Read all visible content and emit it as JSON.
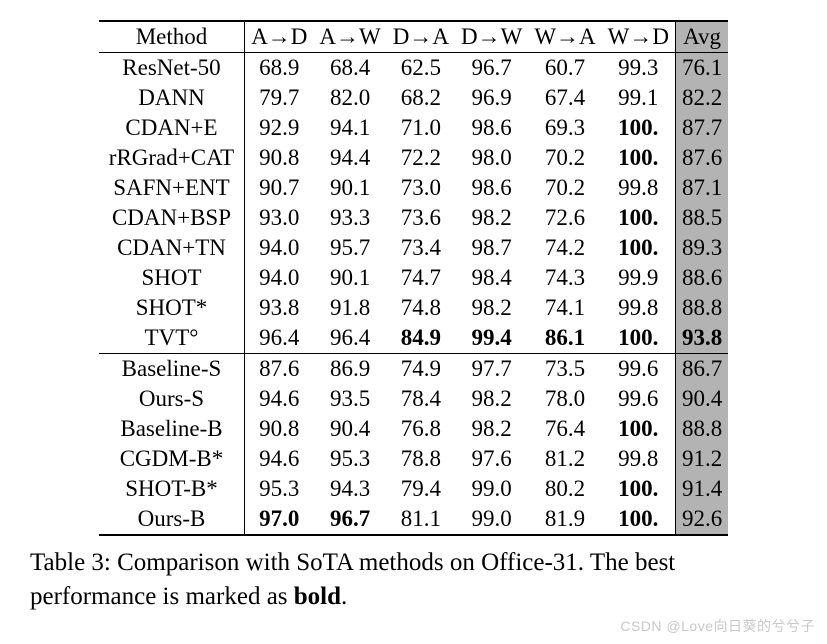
{
  "header": {
    "method": "Method",
    "cols": [
      "A→D",
      "A→W",
      "D→A",
      "D→W",
      "W→A",
      "W→D"
    ],
    "avg": "Avg"
  },
  "groups": [
    {
      "rows": [
        {
          "method": "ResNet-50",
          "vals": [
            "68.9",
            "68.4",
            "62.5",
            "96.7",
            "60.7",
            "99.3"
          ],
          "avg": "76.1",
          "bold": [
            false,
            false,
            false,
            false,
            false,
            false
          ],
          "avg_bold": false
        },
        {
          "method": "DANN",
          "vals": [
            "79.7",
            "82.0",
            "68.2",
            "96.9",
            "67.4",
            "99.1"
          ],
          "avg": "82.2",
          "bold": [
            false,
            false,
            false,
            false,
            false,
            false
          ],
          "avg_bold": false
        },
        {
          "method": "CDAN+E",
          "vals": [
            "92.9",
            "94.1",
            "71.0",
            "98.6",
            "69.3",
            "100."
          ],
          "avg": "87.7",
          "bold": [
            false,
            false,
            false,
            false,
            false,
            true
          ],
          "avg_bold": false
        },
        {
          "method": "rRGrad+CAT",
          "vals": [
            "90.8",
            "94.4",
            "72.2",
            "98.0",
            "70.2",
            "100."
          ],
          "avg": "87.6",
          "bold": [
            false,
            false,
            false,
            false,
            false,
            true
          ],
          "avg_bold": false
        },
        {
          "method": "SAFN+ENT",
          "vals": [
            "90.7",
            "90.1",
            "73.0",
            "98.6",
            "70.2",
            "99.8"
          ],
          "avg": "87.1",
          "bold": [
            false,
            false,
            false,
            false,
            false,
            false
          ],
          "avg_bold": false
        },
        {
          "method": "CDAN+BSP",
          "vals": [
            "93.0",
            "93.3",
            "73.6",
            "98.2",
            "72.6",
            "100."
          ],
          "avg": "88.5",
          "bold": [
            false,
            false,
            false,
            false,
            false,
            true
          ],
          "avg_bold": false
        },
        {
          "method": "CDAN+TN",
          "vals": [
            "94.0",
            "95.7",
            "73.4",
            "98.7",
            "74.2",
            "100."
          ],
          "avg": "89.3",
          "bold": [
            false,
            false,
            false,
            false,
            false,
            true
          ],
          "avg_bold": false
        },
        {
          "method": "SHOT",
          "vals": [
            "94.0",
            "90.1",
            "74.7",
            "98.4",
            "74.3",
            "99.9"
          ],
          "avg": "88.6",
          "bold": [
            false,
            false,
            false,
            false,
            false,
            false
          ],
          "avg_bold": false
        },
        {
          "method": "SHOT*",
          "vals": [
            "93.8",
            "91.8",
            "74.8",
            "98.2",
            "74.1",
            "99.8"
          ],
          "avg": "88.8",
          "bold": [
            false,
            false,
            false,
            false,
            false,
            false
          ],
          "avg_bold": false
        },
        {
          "method": "TVT°",
          "vals": [
            "96.4",
            "96.4",
            "84.9",
            "99.4",
            "86.1",
            "100."
          ],
          "avg": "93.8",
          "bold": [
            false,
            false,
            true,
            true,
            true,
            true
          ],
          "avg_bold": true
        }
      ]
    },
    {
      "rows": [
        {
          "method": "Baseline-S",
          "vals": [
            "87.6",
            "86.9",
            "74.9",
            "97.7",
            "73.5",
            "99.6"
          ],
          "avg": "86.7",
          "bold": [
            false,
            false,
            false,
            false,
            false,
            false
          ],
          "avg_bold": false
        },
        {
          "method": "Ours-S",
          "vals": [
            "94.6",
            "93.5",
            "78.4",
            "98.2",
            "78.0",
            "99.6"
          ],
          "avg": "90.4",
          "bold": [
            false,
            false,
            false,
            false,
            false,
            false
          ],
          "avg_bold": false
        },
        {
          "method": "Baseline-B",
          "vals": [
            "90.8",
            "90.4",
            "76.8",
            "98.2",
            "76.4",
            "100."
          ],
          "avg": "88.8",
          "bold": [
            false,
            false,
            false,
            false,
            false,
            true
          ],
          "avg_bold": false
        },
        {
          "method": "CGDM-B*",
          "vals": [
            "94.6",
            "95.3",
            "78.8",
            "97.6",
            "81.2",
            "99.8"
          ],
          "avg": "91.2",
          "bold": [
            false,
            false,
            false,
            false,
            false,
            false
          ],
          "avg_bold": false
        },
        {
          "method": "SHOT-B*",
          "vals": [
            "95.3",
            "94.3",
            "79.4",
            "99.0",
            "80.2",
            "100."
          ],
          "avg": "91.4",
          "bold": [
            false,
            false,
            false,
            false,
            false,
            true
          ],
          "avg_bold": false
        },
        {
          "method": "Ours-B",
          "vals": [
            "97.0",
            "96.7",
            "81.1",
            "99.0",
            "81.9",
            "100."
          ],
          "avg": "92.6",
          "bold": [
            true,
            true,
            false,
            false,
            false,
            true
          ],
          "avg_bold": false
        }
      ]
    }
  ],
  "caption_prefix": "Table 3: Comparison with SoTA methods on Office-31. The best performance is marked as ",
  "caption_bold": "bold",
  "caption_suffix": ".",
  "watermark": "CSDN @Love向日葵的兮兮子"
}
